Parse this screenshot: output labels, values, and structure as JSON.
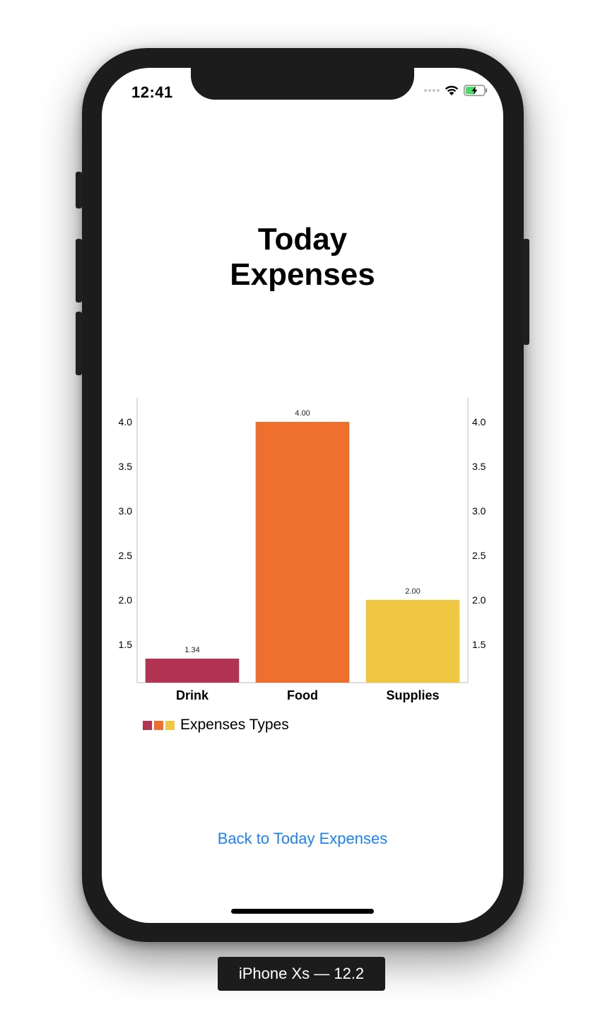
{
  "status_bar": {
    "time": "12:41"
  },
  "header": {
    "title_line1": "Today",
    "title_line2": "Expenses"
  },
  "chart_data": {
    "type": "bar",
    "categories": [
      "Drink",
      "Food",
      "Supplies"
    ],
    "values": [
      1.34,
      4.0,
      2.0
    ],
    "value_labels": [
      "1.34",
      "4.00",
      "2.00"
    ],
    "colors": [
      "#b23352",
      "#ef6f2f",
      "#f0c742"
    ],
    "yticks": [
      "4.0",
      "3.5",
      "3.0",
      "2.5",
      "2.0",
      "1.5"
    ],
    "ylim": [
      1.07,
      4.27
    ],
    "dual_y_axis": true,
    "grid": false,
    "legend": {
      "label": "Expenses Types",
      "position": "bottom-left"
    }
  },
  "footer": {
    "back_label": "Back to Today Expenses"
  },
  "device": {
    "label": "iPhone Xs — 12.2"
  }
}
